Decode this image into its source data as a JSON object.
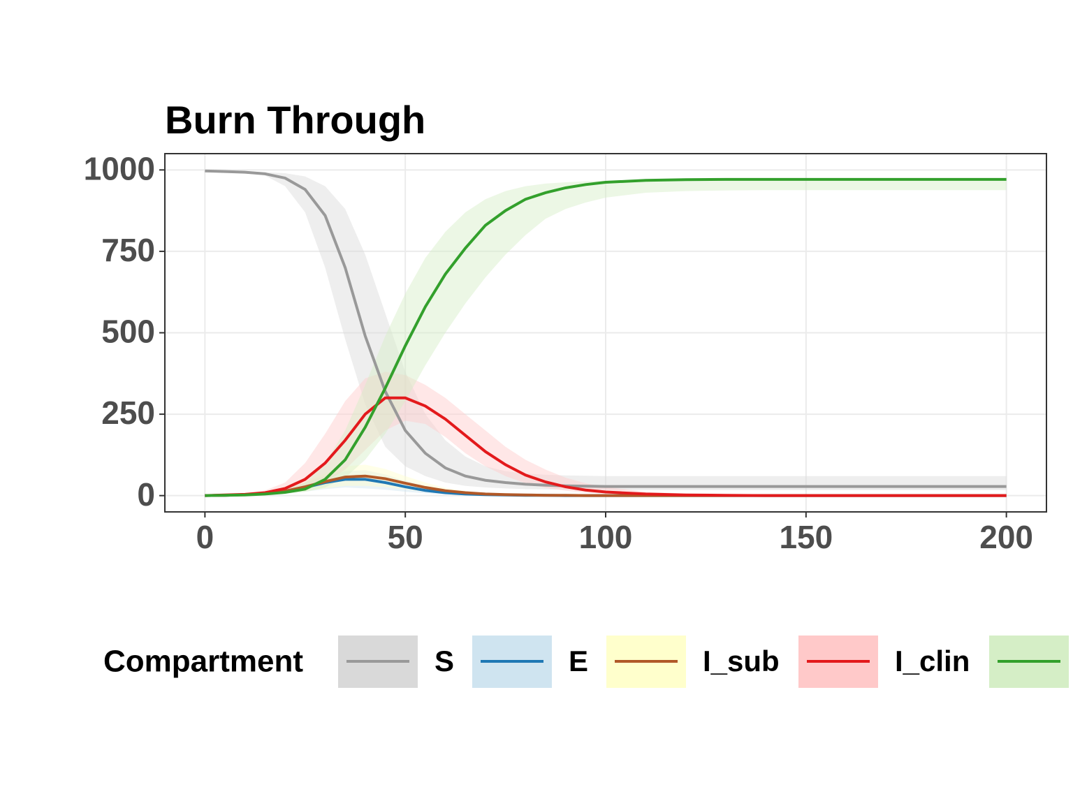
{
  "chart_data": {
    "type": "line",
    "title": "Burn Through",
    "x": [
      0,
      5,
      10,
      15,
      20,
      25,
      30,
      35,
      40,
      45,
      50,
      55,
      60,
      65,
      70,
      75,
      80,
      85,
      90,
      95,
      100,
      110,
      120,
      130,
      140,
      150,
      160,
      170,
      180,
      190,
      200
    ],
    "xlim": [
      -10,
      210
    ],
    "xticks": [
      0,
      50,
      100,
      150,
      200
    ],
    "ylim": [
      -50,
      1050
    ],
    "yticks": [
      0,
      250,
      500,
      750,
      1000
    ],
    "grid": true,
    "legend_title": "Compartment",
    "legend_position": "bottom",
    "series": [
      {
        "name": "S",
        "color": "#999999",
        "band_color": "#d9d9d9",
        "values": [
          997,
          995,
          993,
          988,
          975,
          940,
          860,
          700,
          490,
          320,
          200,
          130,
          85,
          60,
          47,
          40,
          35,
          32,
          30,
          29,
          28,
          28,
          28,
          28,
          28,
          28,
          28,
          28,
          28,
          28,
          28
        ],
        "lower": [
          995,
          993,
          990,
          983,
          950,
          870,
          700,
          480,
          280,
          150,
          90,
          60,
          40,
          30,
          25,
          22,
          20,
          19,
          18,
          18,
          17,
          17,
          17,
          17,
          17,
          17,
          17,
          17,
          17,
          17,
          17
        ],
        "upper": [
          998,
          997,
          996,
          993,
          990,
          980,
          950,
          880,
          740,
          560,
          380,
          250,
          170,
          120,
          90,
          75,
          68,
          64,
          62,
          61,
          60,
          60,
          60,
          60,
          60,
          60,
          60,
          60,
          60,
          60,
          60
        ]
      },
      {
        "name": "E",
        "color": "#1f78b4",
        "band_color": "#cfe4f0",
        "values": [
          0,
          1,
          3,
          6,
          14,
          25,
          40,
          50,
          50,
          40,
          27,
          16,
          9,
          5,
          3,
          2,
          1,
          1,
          0,
          0,
          0,
          0,
          0,
          0,
          0,
          0,
          0,
          0,
          0,
          0,
          0
        ],
        "lower": [
          0,
          0,
          1,
          3,
          6,
          12,
          20,
          25,
          22,
          18,
          12,
          7,
          4,
          2,
          1,
          1,
          0,
          0,
          0,
          0,
          0,
          0,
          0,
          0,
          0,
          0,
          0,
          0,
          0,
          0,
          0
        ],
        "upper": [
          0,
          2,
          5,
          10,
          22,
          40,
          60,
          75,
          78,
          65,
          45,
          30,
          18,
          10,
          6,
          4,
          2,
          1,
          1,
          0,
          0,
          0,
          0,
          0,
          0,
          0,
          0,
          0,
          0,
          0,
          0
        ]
      },
      {
        "name": "I_sub",
        "color": "#b15928",
        "band_color": "#ffffcc",
        "values": [
          0,
          1,
          3,
          6,
          14,
          27,
          43,
          57,
          60,
          52,
          38,
          25,
          15,
          9,
          5,
          3,
          2,
          1,
          1,
          0,
          0,
          0,
          0,
          0,
          0,
          0,
          0,
          0,
          0,
          0,
          0
        ],
        "lower": [
          0,
          0,
          1,
          3,
          7,
          13,
          22,
          30,
          30,
          26,
          19,
          12,
          7,
          4,
          2,
          1,
          1,
          0,
          0,
          0,
          0,
          0,
          0,
          0,
          0,
          0,
          0,
          0,
          0,
          0,
          0
        ],
        "upper": [
          0,
          2,
          5,
          10,
          23,
          43,
          68,
          90,
          95,
          82,
          60,
          40,
          24,
          14,
          8,
          5,
          3,
          2,
          1,
          1,
          0,
          0,
          0,
          0,
          0,
          0,
          0,
          0,
          0,
          0,
          0
        ]
      },
      {
        "name": "I_clin",
        "color": "#e31a1c",
        "band_color": "#ffc9c9",
        "values": [
          0,
          2,
          4,
          9,
          22,
          50,
          100,
          170,
          250,
          300,
          300,
          275,
          235,
          185,
          135,
          95,
          63,
          42,
          27,
          17,
          11,
          5,
          2,
          1,
          0,
          0,
          0,
          0,
          0,
          0,
          0
        ],
        "lower": [
          0,
          1,
          2,
          4,
          10,
          20,
          40,
          80,
          140,
          200,
          230,
          220,
          180,
          130,
          90,
          60,
          38,
          24,
          15,
          9,
          6,
          2,
          1,
          0,
          0,
          0,
          0,
          0,
          0,
          0,
          0
        ],
        "upper": [
          0,
          3,
          7,
          16,
          40,
          100,
          190,
          290,
          360,
          380,
          370,
          340,
          300,
          250,
          200,
          150,
          110,
          80,
          55,
          38,
          26,
          12,
          6,
          3,
          1,
          0,
          0,
          0,
          0,
          0,
          0
        ]
      },
      {
        "name": null,
        "color": "#33a02c",
        "band_color": "#d5eec6",
        "values": [
          0,
          1,
          2,
          5,
          10,
          20,
          50,
          110,
          210,
          330,
          460,
          580,
          680,
          760,
          830,
          875,
          910,
          930,
          945,
          955,
          962,
          968,
          970,
          971,
          971,
          971,
          971,
          971,
          971,
          971,
          971
        ],
        "lower": [
          0,
          0,
          1,
          3,
          6,
          12,
          25,
          55,
          110,
          190,
          290,
          400,
          500,
          590,
          670,
          740,
          800,
          850,
          880,
          900,
          915,
          930,
          935,
          937,
          938,
          938,
          938,
          938,
          938,
          938,
          938
        ],
        "upper": [
          0,
          2,
          4,
          8,
          18,
          40,
          100,
          200,
          340,
          490,
          620,
          730,
          810,
          870,
          910,
          935,
          950,
          958,
          962,
          965,
          967,
          970,
          972,
          975,
          975,
          975,
          975,
          975,
          975,
          975,
          975
        ]
      }
    ]
  }
}
